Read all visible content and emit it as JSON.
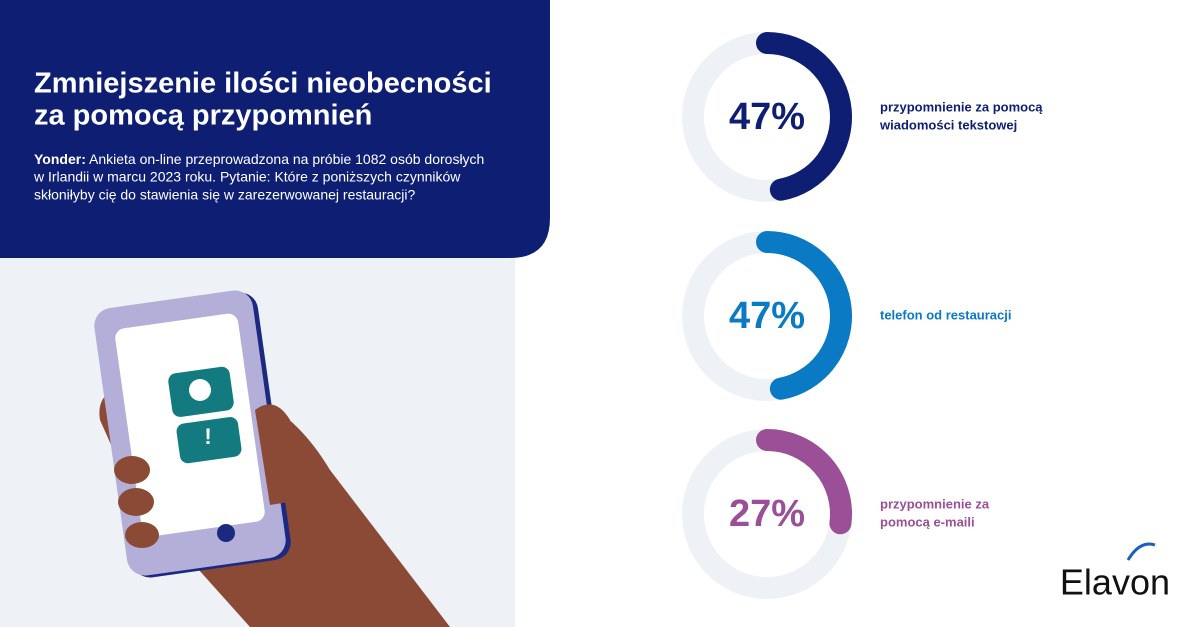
{
  "header": {
    "title_lines": [
      "Zmniejszenie ilości nieobecności",
      "za pomocą przypomnień"
    ],
    "source_label": "Yonder:",
    "description_lines": [
      " Ankieta on-line przeprowadzona na próbie 1082 osób dorosłych",
      "w Irlandii w marcu 2023 roku. Pytanie: Które z poniższych czynników",
      "skłoniłyby cię do stawienia się w zarezerwowanej restauracji?"
    ]
  },
  "stats": [
    {
      "value": 47,
      "value_label": "47%",
      "color": "#0e1f73",
      "label_lines": [
        "przypomnienie za pomocą",
        "wiadomości tekstowej"
      ]
    },
    {
      "value": 47,
      "value_label": "47%",
      "color": "#0a7ac5",
      "label_lines": [
        "telefon od restauracji"
      ]
    },
    {
      "value": 27,
      "value_label": "27%",
      "color": "#9b4f96",
      "label_lines": [
        "przypomnienie za",
        "pomocą e-maili"
      ]
    }
  ],
  "logo": "Elavon"
}
